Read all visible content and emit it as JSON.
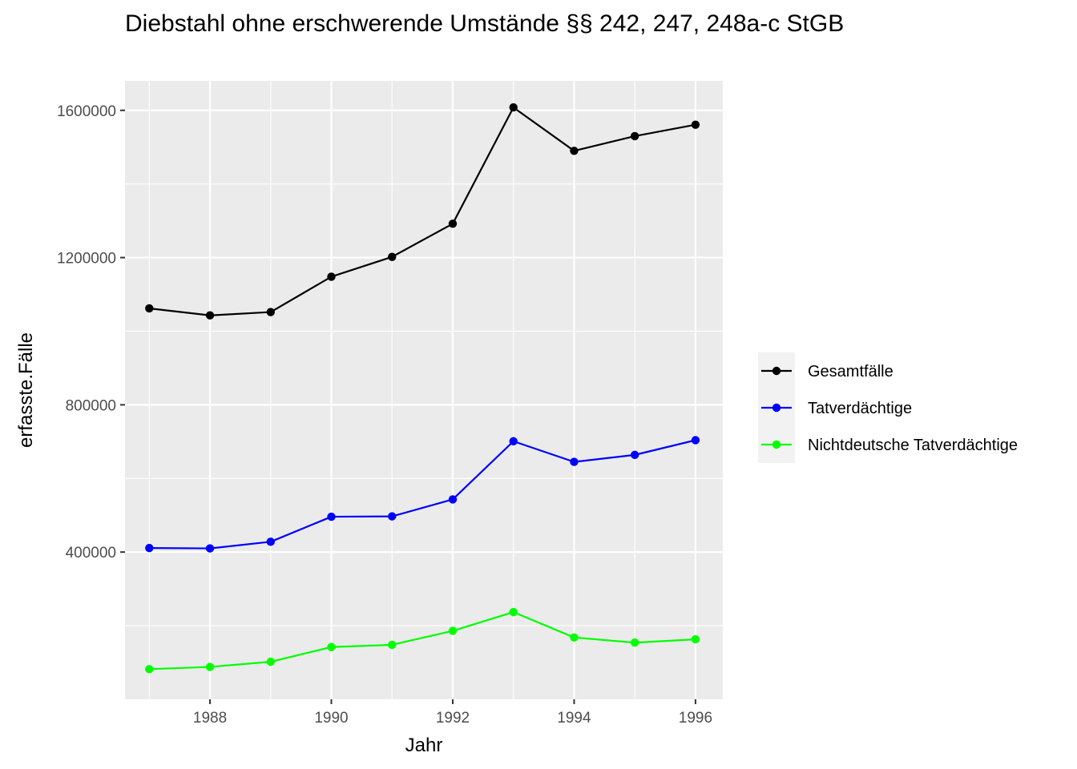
{
  "chart_data": {
    "type": "line",
    "title": "Diebstahl ohne erschwerende Umstände §§ 242, 247, 248a-c StGB",
    "xlabel": "Jahr",
    "ylabel": "erfasste.Fälle",
    "x": [
      1987,
      1988,
      1989,
      1990,
      1991,
      1992,
      1993,
      1994,
      1995,
      1996
    ],
    "xlim": [
      1986.6,
      1996.45
    ],
    "ylim": [
      0,
      1680000
    ],
    "x_ticks": [
      1988,
      1990,
      1992,
      1994,
      1996
    ],
    "y_ticks": [
      400000,
      800000,
      1200000,
      1600000
    ],
    "x_tick_labels": [
      "1988",
      "1990",
      "1992",
      "1994",
      "1996"
    ],
    "y_tick_labels": [
      "400000",
      "800000",
      "1200000",
      "1600000"
    ],
    "grid": true,
    "legend_position": "right",
    "series": [
      {
        "name": "Gesamtfälle",
        "color": "#000000",
        "values": [
          1062000,
          1043000,
          1052000,
          1148000,
          1202000,
          1292000,
          1608000,
          1490000,
          1530000,
          1561000
        ]
      },
      {
        "name": "Tatverdächtige",
        "color": "#0000ff",
        "values": [
          411000,
          410000,
          428000,
          496000,
          497000,
          543000,
          701000,
          645000,
          664000,
          704000
        ]
      },
      {
        "name": "Nichtdeutsche Tatverdächtige",
        "color": "#00ff00",
        "values": [
          82000,
          88000,
          102000,
          142000,
          148000,
          186000,
          237000,
          168000,
          154000,
          163000
        ]
      }
    ]
  }
}
